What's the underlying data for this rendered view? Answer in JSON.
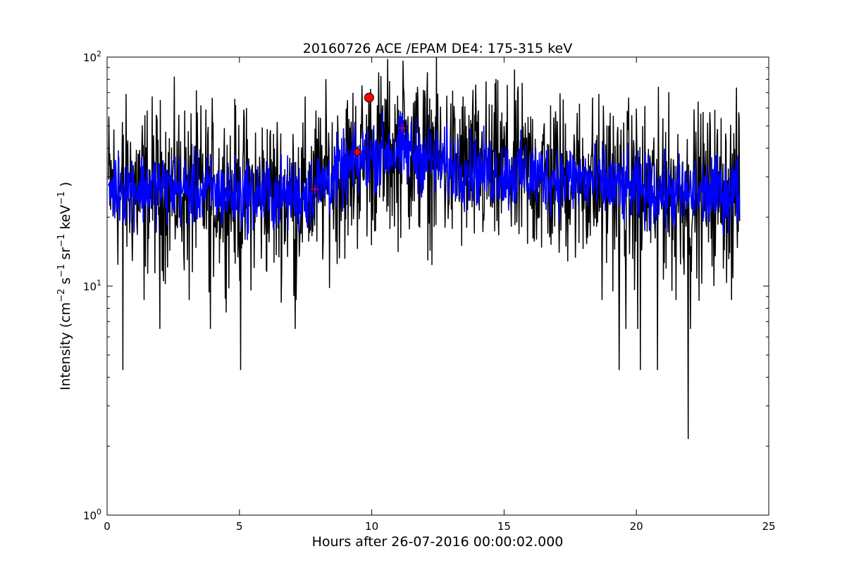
{
  "chart_data": {
    "type": "line",
    "title": "20160726 ACE /EPAM DE4: 175-315 keV",
    "xlabel": "Hours after 26-07-2016 00:00:02.000",
    "ylabel": {
      "prefix": "Intensity (cm",
      "p1": "−2",
      "mid1": " s",
      "p2": "−1",
      "mid2": " sr",
      "p3": "−1",
      "mid3": " keV",
      "p4": "−1",
      "suffix": " )"
    },
    "xlim": [
      0,
      25
    ],
    "ylim": [
      1,
      100
    ],
    "yscale": "log",
    "grid": false,
    "x_ticks": [
      {
        "value": 0,
        "label": "0"
      },
      {
        "value": 5,
        "label": "5"
      },
      {
        "value": 10,
        "label": "10"
      },
      {
        "value": 15,
        "label": "15"
      },
      {
        "value": 20,
        "label": "20"
      },
      {
        "value": 25,
        "label": "25"
      }
    ],
    "y_ticks": [
      {
        "value": 1,
        "base": "10",
        "exp": "0"
      },
      {
        "value": 10,
        "base": "10",
        "exp": "1"
      },
      {
        "value": 100,
        "base": "10",
        "exp": "2"
      }
    ],
    "series": [
      {
        "color": "#000000",
        "x_range": [
          0.05,
          23.9
        ],
        "profile": [
          [
            0,
            27
          ],
          [
            2,
            27
          ],
          [
            5,
            25
          ],
          [
            7.5,
            25
          ],
          [
            9,
            32
          ],
          [
            10.2,
            38
          ],
          [
            11.2,
            39
          ],
          [
            13,
            33
          ],
          [
            15,
            31
          ],
          [
            18,
            29
          ],
          [
            20,
            26
          ],
          [
            22,
            25
          ],
          [
            23.9,
            26
          ]
        ],
        "scatter": 0.42,
        "spikes_down": [
          [
            0.6,
            4.3
          ],
          [
            1.4,
            8.7
          ],
          [
            2.0,
            6.5
          ],
          [
            3.1,
            8.7
          ],
          [
            3.9,
            6.5
          ],
          [
            5.05,
            4.3
          ],
          [
            7.1,
            6.5
          ],
          [
            7.15,
            8.7
          ],
          [
            18.7,
            8.7
          ],
          [
            19.35,
            4.3
          ],
          [
            19.6,
            6.5
          ],
          [
            20.05,
            6.5
          ],
          [
            20.15,
            4.3
          ],
          [
            20.8,
            4.3
          ],
          [
            21.5,
            8.7
          ],
          [
            21.95,
            2.15
          ],
          [
            22.05,
            6.5
          ],
          [
            23.6,
            8.7
          ]
        ],
        "spikes_up": [
          [
            9.9,
            62
          ],
          [
            10.4,
            58
          ],
          [
            11.2,
            73
          ],
          [
            11.5,
            55
          ],
          [
            12.3,
            52
          ],
          [
            16.0,
            55
          ],
          [
            19.0,
            57
          ],
          [
            21.0,
            54
          ],
          [
            22.8,
            50
          ]
        ]
      },
      {
        "color": "#0000ff",
        "x_range": [
          0.05,
          23.9
        ],
        "profile": [
          [
            0,
            27
          ],
          [
            2,
            27
          ],
          [
            5,
            25
          ],
          [
            7.5,
            25
          ],
          [
            9,
            32
          ],
          [
            10.2,
            38
          ],
          [
            11.2,
            39
          ],
          [
            13,
            33
          ],
          [
            15,
            31
          ],
          [
            18,
            29
          ],
          [
            20,
            26
          ],
          [
            22,
            25
          ],
          [
            23.9,
            26
          ]
        ],
        "scatter": 0.18
      }
    ],
    "markers": [
      {
        "shape": "circle",
        "x": 9.9,
        "y": 66.5,
        "color": "#ff0000"
      },
      {
        "shape": "diamond",
        "x": 9.45,
        "y": 38.5,
        "color": "#ff0000"
      },
      {
        "shape": "plus",
        "x": 7.85,
        "y": 26.5,
        "color": "#ff0000"
      },
      {
        "shape": "plus",
        "x": 11.15,
        "y": 49,
        "color": "#ff0000"
      }
    ]
  }
}
